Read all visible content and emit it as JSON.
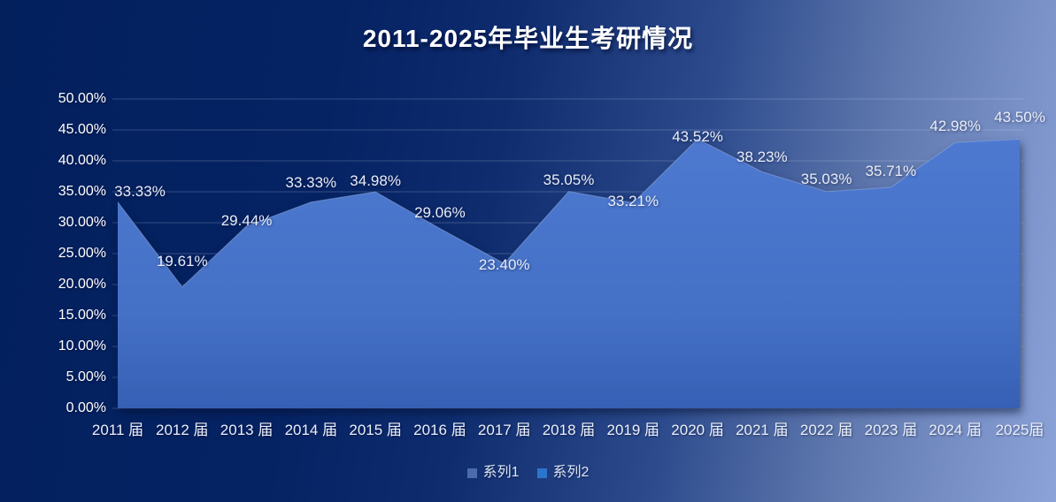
{
  "title": "2011-2025年毕业生考研情况",
  "chart_data": {
    "type": "area",
    "title": "2011-2025年毕业生考研情况",
    "categories": [
      "2011 届",
      "2012 届",
      "2013 届",
      "2014 届",
      "2015 届",
      "2016 届",
      "2017 届",
      "2018 届",
      "2019 届",
      "2020 届",
      "2021 届",
      "2022 届",
      "2023 届",
      "2024 届",
      "2025届"
    ],
    "series": [
      {
        "name": "系列1",
        "values": [
          33.33,
          19.61,
          29.44,
          33.33,
          34.98,
          29.06,
          23.4,
          35.05,
          33.21,
          43.52,
          38.23,
          35.03,
          35.71,
          42.98,
          43.5
        ]
      },
      {
        "name": "系列2",
        "values": []
      }
    ],
    "data_labels": [
      "33.33%",
      "19.61%",
      "29.44%",
      "33.33%",
      "34.98%",
      "29.06%",
      "23.40%",
      "35.05%",
      "33.21%",
      "43.52%",
      "38.23%",
      "35.03%",
      "35.71%",
      "42.98%",
      "43.50%"
    ],
    "y_ticks": [
      "50.00%",
      "45.00%",
      "40.00%",
      "35.00%",
      "30.00%",
      "25.00%",
      "20.00%",
      "15.00%",
      "10.00%",
      "5.00%",
      "0.00%"
    ],
    "ylim": [
      0,
      50
    ],
    "y_step": 5,
    "grid": true,
    "legend_position": "bottom"
  },
  "legend": {
    "items": [
      {
        "label": "系列1",
        "color": "#4a6cae"
      },
      {
        "label": "系列2",
        "color": "#2b76cc"
      }
    ]
  },
  "colors": {
    "background_left": "#03205d",
    "background_right": "#8ba3d9",
    "area_fill_top": "#4e79d0",
    "area_fill_bottom": "#3660b4",
    "area_edge": "#8aa5de",
    "gridline": "rgba(220,230,250,0.22)",
    "text": "#ffffff"
  }
}
